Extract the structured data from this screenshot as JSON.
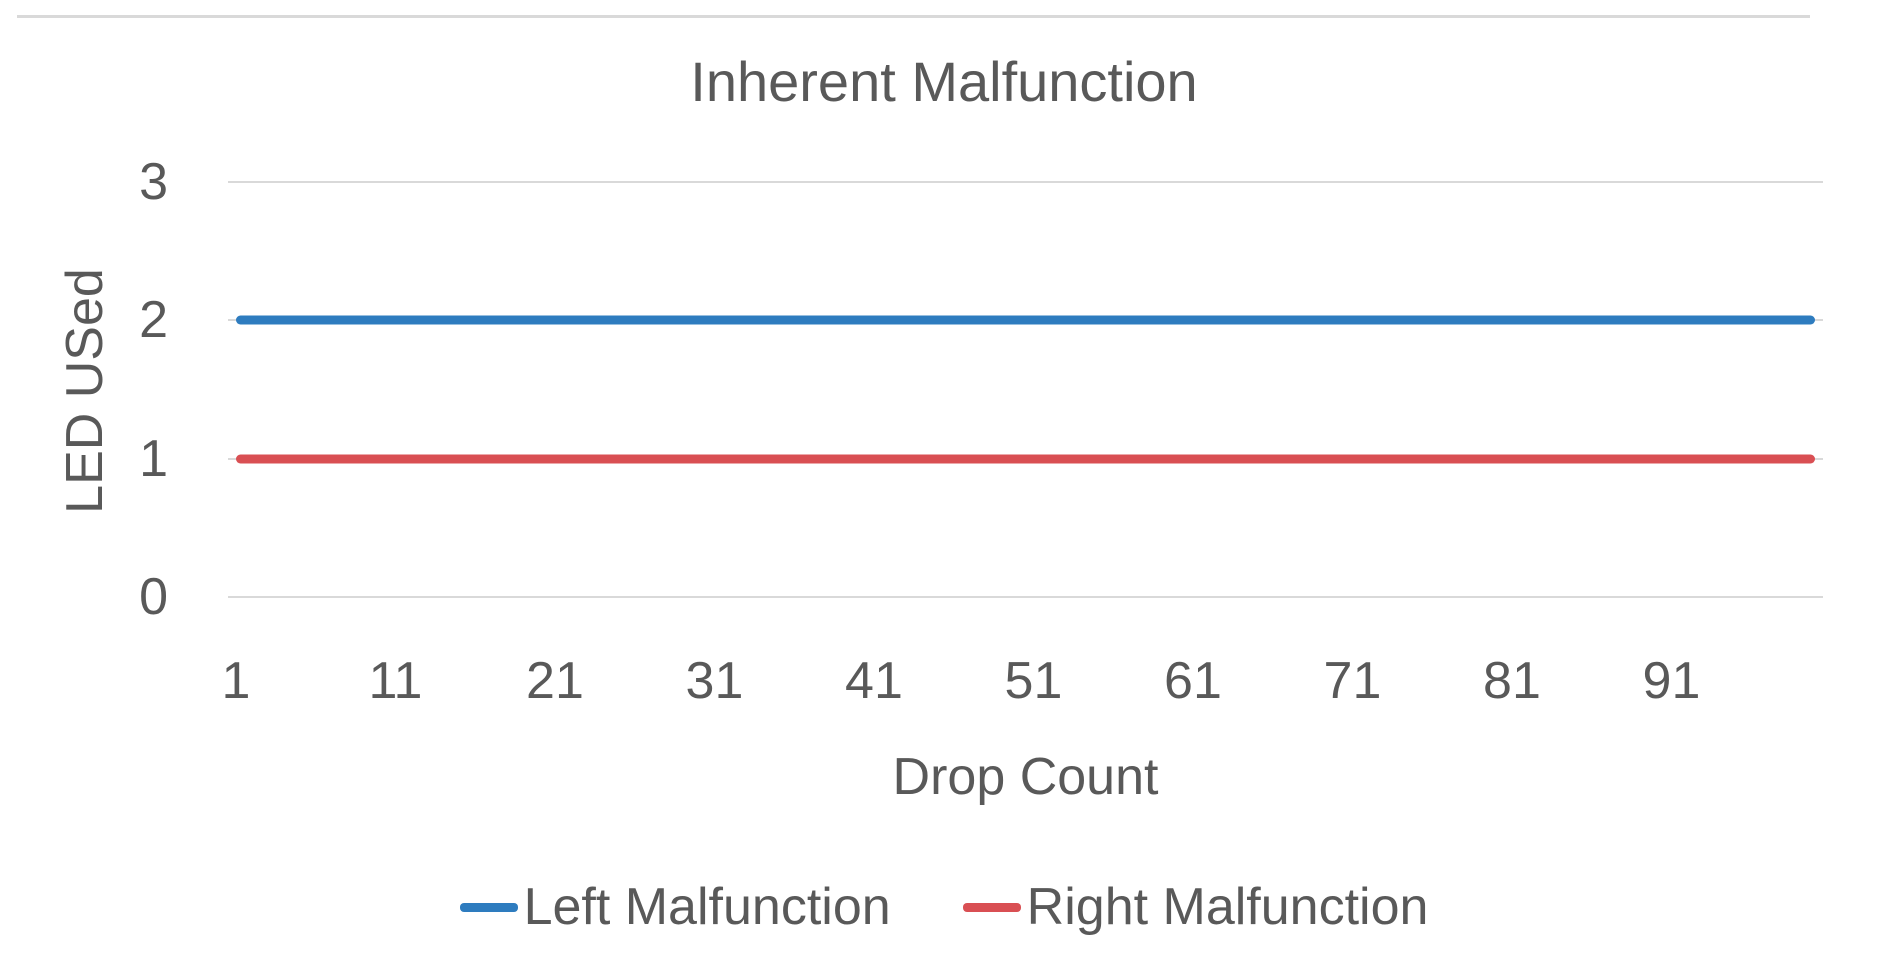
{
  "chart_data": {
    "type": "line",
    "title": "Inherent Malfunction",
    "xlabel": "Drop Count",
    "ylabel": "LED USed",
    "x_tick_labels": [
      "1",
      "11",
      "21",
      "31",
      "41",
      "51",
      "61",
      "71",
      "81",
      "91"
    ],
    "y_tick_labels": [
      "3",
      "2",
      "1",
      "0"
    ],
    "ylim": [
      0,
      3
    ],
    "x_range": [
      1,
      100
    ],
    "series": [
      {
        "name": "Left Malfunction",
        "color": "#2e7cbf",
        "constant_value": 2,
        "x_start": 1,
        "x_end": 100
      },
      {
        "name": "Right Malfunction",
        "color": "#d94f53",
        "constant_value": 1,
        "x_start": 1,
        "x_end": 100
      }
    ],
    "grid": "horizontal gridlines at y = 0, 1, 2, 3",
    "gridline_color": "#d9d9d9",
    "text_color": "#595959",
    "legend_position": "bottom"
  }
}
